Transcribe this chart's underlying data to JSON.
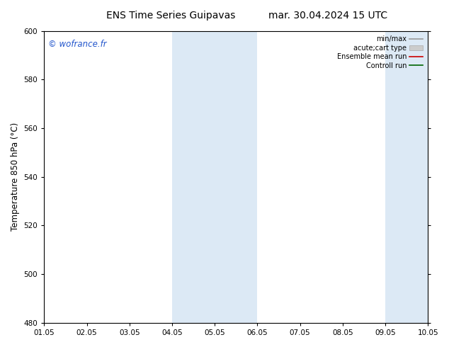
{
  "title_left": "ENS Time Series Guipavas",
  "title_right": "mar. 30.04.2024 15 UTC",
  "ylabel": "Temperature 850 hPa (°C)",
  "watermark": "© wofrance.fr",
  "ylim": [
    480,
    600
  ],
  "yticks": [
    480,
    500,
    520,
    540,
    560,
    580,
    600
  ],
  "xtick_labels": [
    "01.05",
    "02.05",
    "03.05",
    "04.05",
    "05.05",
    "06.05",
    "07.05",
    "08.05",
    "09.05",
    "10.05"
  ],
  "shaded_bands": [
    {
      "xmin": 3,
      "xmax": 4
    },
    {
      "xmin": 4,
      "xmax": 5
    },
    {
      "xmin": 8,
      "xmax": 9
    }
  ],
  "band_color": "#dce9f5",
  "legend_items": [
    {
      "label": "min/max",
      "color": "#999999",
      "lw": 1.2,
      "patch": false
    },
    {
      "label": "acute;cart type",
      "color": "#cccccc",
      "lw": 6,
      "patch": true
    },
    {
      "label": "Ensemble mean run",
      "color": "#cc0000",
      "lw": 1.2,
      "patch": false
    },
    {
      "label": "Controll run",
      "color": "#006600",
      "lw": 1.2,
      "patch": false
    }
  ],
  "bg_color": "#ffffff",
  "plot_bg_color": "#ffffff",
  "spine_color": "#000000",
  "tick_label_fontsize": 7.5,
  "title_fontsize": 10,
  "ylabel_fontsize": 8.5,
  "watermark_fontsize": 8.5,
  "watermark_color": "#2255cc"
}
